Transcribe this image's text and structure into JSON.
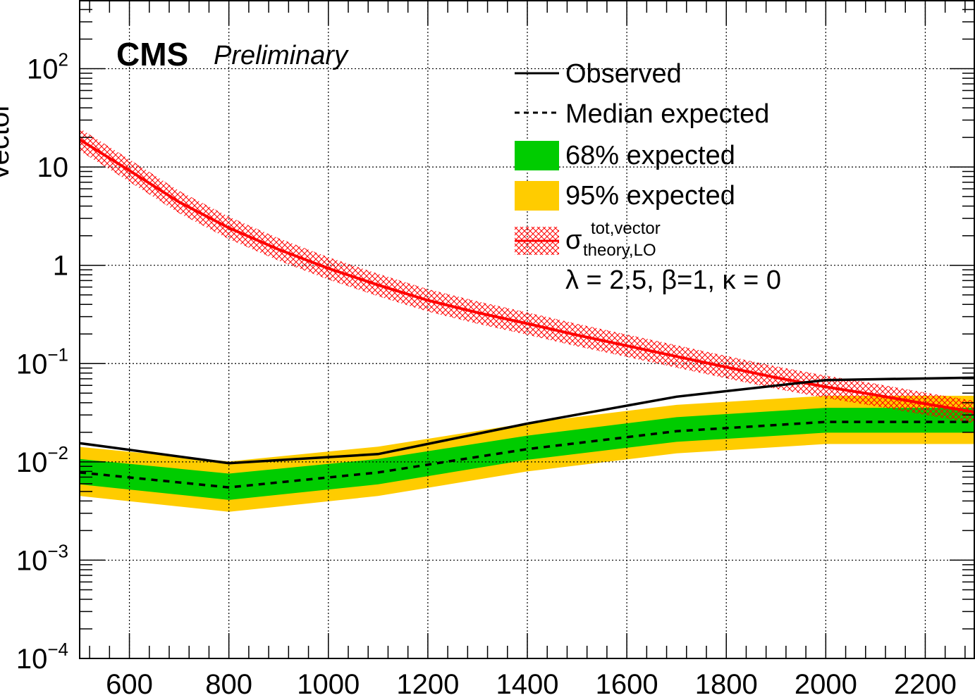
{
  "experiment_label": "CMS",
  "status_label": "Preliminary",
  "legend": {
    "observed": "Observed",
    "median": "Median expected",
    "band68": "68% expected",
    "band95": "95% expected",
    "theory_symbol": "σ",
    "theory_sup": "tot,vector",
    "theory_sub": "theory,LO",
    "params": "λ = 2.5, β=1, κ = 0"
  },
  "colors": {
    "observed": "#000000",
    "median": "#000000",
    "band68": "#00cc00",
    "band95": "#ffcc00",
    "theory": "#ff0000",
    "grid": "#000000"
  },
  "chart_data": {
    "type": "line",
    "x_scale": "linear",
    "y_scale": "log",
    "xlim": [
      500,
      2300
    ],
    "ylim": [
      0.0001,
      500
    ],
    "grid": true,
    "legend_position": "top-right",
    "x_ticks": [
      600,
      800,
      1000,
      1200,
      1400,
      1600,
      1800,
      2000,
      2200
    ],
    "y_ticks": [
      {
        "value": 0.0001,
        "base": "10",
        "exp": "−4"
      },
      {
        "value": 0.001,
        "base": "10",
        "exp": "−3"
      },
      {
        "value": 0.01,
        "base": "10",
        "exp": "−2"
      },
      {
        "value": 0.1,
        "base": "10",
        "exp": "−1"
      },
      {
        "value": 1,
        "base": "1",
        "exp": ""
      },
      {
        "value": 10,
        "base": "10",
        "exp": ""
      },
      {
        "value": 100,
        "base": "10",
        "exp": "2"
      }
    ],
    "ylabel_fragment": "vector",
    "masses": [
      500,
      800,
      1100,
      1400,
      1700,
      2000,
      2300
    ],
    "observed": [
      0.0155,
      0.0097,
      0.012,
      0.0245,
      0.046,
      0.068,
      0.072
    ],
    "median": [
      0.0078,
      0.0055,
      0.0078,
      0.0135,
      0.0205,
      0.0255,
      0.0255
    ],
    "band68": {
      "low": [
        0.0059,
        0.0041,
        0.0059,
        0.0105,
        0.016,
        0.0198,
        0.0198
      ],
      "high": [
        0.0107,
        0.0076,
        0.0107,
        0.0185,
        0.0285,
        0.0355,
        0.0355
      ]
    },
    "band95": {
      "low": [
        0.0045,
        0.0031,
        0.0045,
        0.008,
        0.0122,
        0.0152,
        0.0152
      ],
      "high": [
        0.0142,
        0.0101,
        0.0143,
        0.0248,
        0.038,
        0.047,
        0.047
      ]
    },
    "theory": {
      "x": [
        500,
        600,
        700,
        800,
        900,
        1000,
        1100,
        1200,
        1300,
        1400,
        1500,
        1600,
        1700,
        1800,
        1900,
        2000,
        2100,
        2200,
        2300
      ],
      "y": [
        19,
        9.2,
        4.4,
        2.4,
        1.45,
        0.93,
        0.63,
        0.44,
        0.33,
        0.255,
        0.195,
        0.152,
        0.118,
        0.092,
        0.072,
        0.058,
        0.048,
        0.039,
        0.032
      ]
    }
  }
}
